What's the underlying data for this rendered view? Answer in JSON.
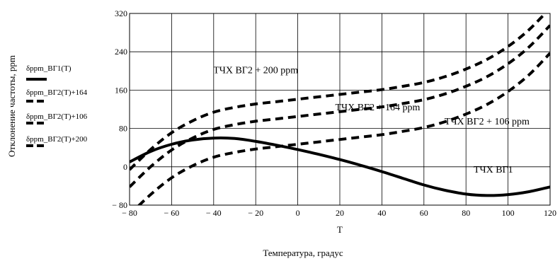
{
  "chart_data": {
    "type": "line",
    "xlabel": "T",
    "xlabel2": "Температура, градус",
    "ylabel": "Отклонение частоты, ppm",
    "xlim": [
      -80,
      120
    ],
    "ylim": [
      -80,
      320
    ],
    "x_ticks": [
      -80,
      -60,
      -40,
      -20,
      0,
      20,
      40,
      60,
      80,
      100,
      120
    ],
    "x_tick_labels": [
      "− 80",
      "− 60",
      "− 40",
      "− 20",
      "0",
      "20",
      "40",
      "60",
      "80",
      "100",
      "120"
    ],
    "y_ticks": [
      -80,
      0,
      80,
      160,
      240,
      320
    ],
    "y_tick_labels": [
      "− 80",
      "0",
      "80",
      "160",
      "240",
      "320"
    ],
    "grid": true,
    "legend_position": "left",
    "x": [
      -80,
      -70,
      -60,
      -50,
      -40,
      -30,
      -20,
      -10,
      0,
      10,
      20,
      30,
      40,
      50,
      60,
      70,
      80,
      90,
      100,
      110,
      120
    ],
    "series": [
      {
        "name": "δppm_ВГ1(T)",
        "style": "solid",
        "values": [
          10,
          32,
          47,
          56,
          60,
          59,
          53,
          45,
          36,
          26,
          15,
          3,
          -10,
          -24,
          -38,
          -49,
          -57,
          -60,
          -58,
          -52,
          -42
        ]
      },
      {
        "name": "δppm_ВГ2(T)+164",
        "style": "dashed",
        "values": [
          -42,
          0,
          35,
          60,
          78,
          88,
          95,
          100,
          105,
          110,
          115,
          120,
          125,
          132,
          140,
          152,
          168,
          188,
          215,
          250,
          295
        ]
      },
      {
        "name": "δppm_ВГ2(T)+106",
        "style": "dashed",
        "values": [
          -100,
          -58,
          -23,
          2,
          20,
          30,
          37,
          42,
          47,
          52,
          57,
          62,
          67,
          74,
          82,
          94,
          110,
          130,
          157,
          192,
          237
        ]
      },
      {
        "name": "δppm_ВГ2(T)+200",
        "style": "dashed",
        "values": [
          -6,
          36,
          71,
          96,
          114,
          124,
          131,
          136,
          141,
          146,
          151,
          156,
          161,
          168,
          176,
          188,
          204,
          224,
          251,
          286,
          331
        ]
      }
    ],
    "annotations": [
      {
        "text": "ТЧХ ВГ2 + 200 ppm",
        "x": -20,
        "y": 195
      },
      {
        "text": "ТЧХ ВГ2 + 164 ppm",
        "x": 38,
        "y": 118
      },
      {
        "text": "ТЧХ ВГ2 + 106 ppm",
        "x": 90,
        "y": 88
      },
      {
        "text": "ТЧХ ВГ1",
        "x": 93,
        "y": -12
      }
    ],
    "legend_row_y": [
      100,
      131,
      162,
      194
    ],
    "annotation_label_shift": [
      0,
      3,
      6,
      6
    ]
  }
}
